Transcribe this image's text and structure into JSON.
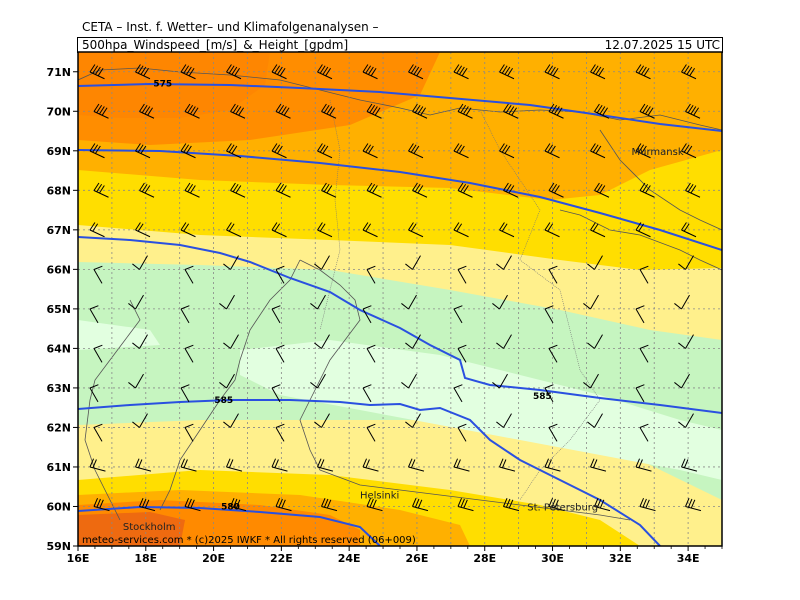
{
  "header": {
    "line1": "CETA – Inst. f. Wetter– und Klimafolgenanalysen –",
    "line2": "500hpa_Windspeed_[m/s]_&_Height_[gpdm]",
    "valid_time": "12.07.2025  15 UTC"
  },
  "footer": "meteo-services.com * (c)2025 IWKF * All rights reserved (06+009)",
  "axes": {
    "lon_labels": [
      "16E",
      "18E",
      "20E",
      "22E",
      "24E",
      "26E",
      "28E",
      "30E",
      "32E",
      "34E"
    ],
    "lat_labels": [
      "71N",
      "70N",
      "69N",
      "68N",
      "67N",
      "66N",
      "65N",
      "64N",
      "63N",
      "62N",
      "61N",
      "60N",
      "59N"
    ]
  },
  "places": [
    {
      "name": "Murmansk",
      "lon": 33.1,
      "lat": 68.9
    },
    {
      "name": "Helsinki",
      "lon": 24.9,
      "lat": 60.2
    },
    {
      "name": "St. Petersburg",
      "lon": 30.3,
      "lat": 59.9
    },
    {
      "name": "Stockholm",
      "lon": 18.1,
      "lat": 59.4
    }
  ],
  "contours": [
    {
      "label": "575",
      "lon": 18.5,
      "lat": 70.7
    },
    {
      "label": "580",
      "lon": 20.5,
      "lat": 60.0
    },
    {
      "label": "585",
      "lon": 20.3,
      "lat": 62.7
    },
    {
      "label": "585",
      "lon": 29.7,
      "lat": 62.8
    }
  ],
  "colors": {
    "wind_lt8": "#e2ffe0",
    "wind_8_12": "#c6f5c0",
    "wind_12_16": "#fff08c",
    "wind_16_20": "#ffde00",
    "wind_20_24": "#ffb000",
    "wind_gt24": "#ff8a00",
    "wind_max": "#ee6a10",
    "contour": "#2a50e0",
    "coast": "#555555",
    "grid": "#888888"
  }
}
